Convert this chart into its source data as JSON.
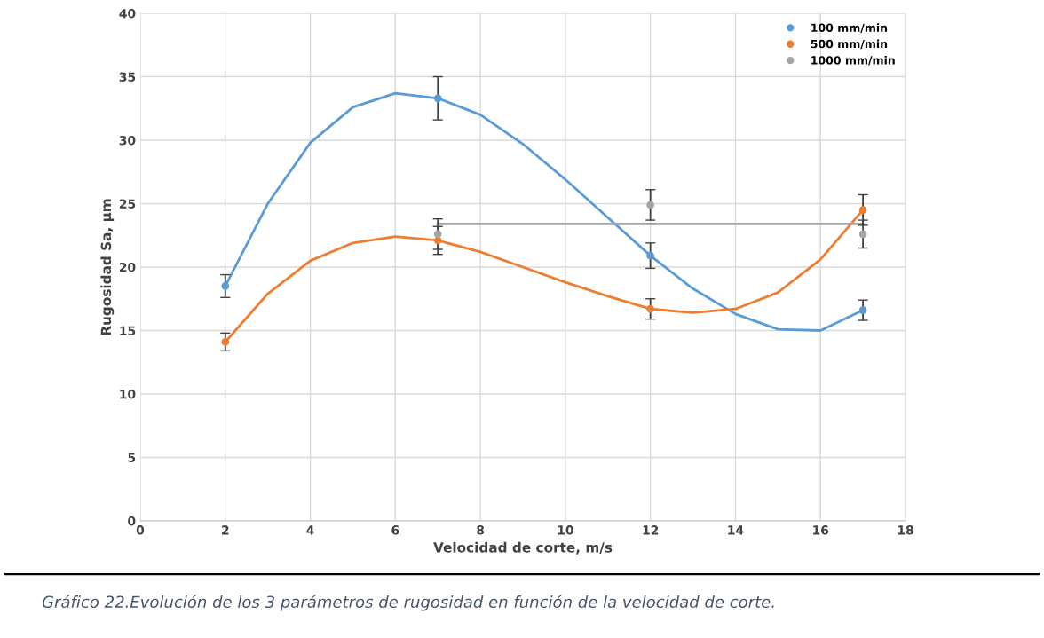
{
  "chart_data": {
    "type": "scatter",
    "xlabel": "Velocidad de corte, m/s",
    "ylabel": "Rugosidad Sa, µm",
    "xlim": [
      0,
      18
    ],
    "xticks": [
      0,
      2,
      4,
      6,
      8,
      10,
      12,
      14,
      16,
      18
    ],
    "ylim": [
      0,
      40
    ],
    "yticks": [
      0,
      5,
      10,
      15,
      20,
      25,
      30,
      35,
      40
    ],
    "grid": true,
    "legend": "top right",
    "marker": "circle",
    "annotations": [
      "Gráfico 22.Evolución de los 3 parámetros de rugosidad en función de la velocidad de corte."
    ],
    "series": [
      {
        "type": "line",
        "marker": "none",
        "color": "#5b9bd5",
        "x": [
          2,
          3,
          4,
          5,
          6,
          7,
          8,
          9,
          10,
          11,
          12,
          13,
          14,
          15,
          16,
          17
        ],
        "values": [
          18.5,
          25.0,
          29.8,
          32.6,
          33.7,
          33.3,
          32.0,
          29.7,
          26.9,
          23.9,
          20.9,
          18.3,
          16.3,
          15.1,
          15.0,
          16.6
        ]
      },
      {
        "type": "line",
        "marker": "none",
        "color": "#ed7d31",
        "x": [
          2,
          3,
          4,
          5,
          6,
          7,
          8,
          9,
          10,
          11,
          12,
          13,
          14,
          15,
          16,
          17
        ],
        "values": [
          14.1,
          17.9,
          20.5,
          21.9,
          22.4,
          22.1,
          21.2,
          20.0,
          18.8,
          17.7,
          16.7,
          16.4,
          16.7,
          18.0,
          20.6,
          24.5
        ]
      },
      {
        "type": "line",
        "marker": "none",
        "color": "#a5a5a5",
        "x": [
          7,
          17
        ],
        "values": [
          23.4,
          23.4
        ]
      },
      {
        "name": "100 mm/min",
        "color": "#5b9bd5",
        "x": [
          2,
          7,
          12,
          17
        ],
        "values": [
          18.5,
          33.3,
          20.9,
          16.6
        ],
        "errors": [
          0.9,
          1.7,
          1.0,
          0.8
        ]
      },
      {
        "name": "500 mm/min",
        "color": "#ed7d31",
        "x": [
          2,
          7,
          12,
          17
        ],
        "values": [
          14.1,
          22.1,
          16.7,
          24.5
        ],
        "errors": [
          0.7,
          1.1,
          0.8,
          1.2
        ]
      },
      {
        "name": "1000 mm/min",
        "color": "#a5a5a5",
        "x": [
          7,
          12,
          17
        ],
        "values": [
          22.6,
          24.9,
          22.6
        ],
        "errors": [
          1.2,
          1.2,
          1.1
        ]
      }
    ]
  }
}
